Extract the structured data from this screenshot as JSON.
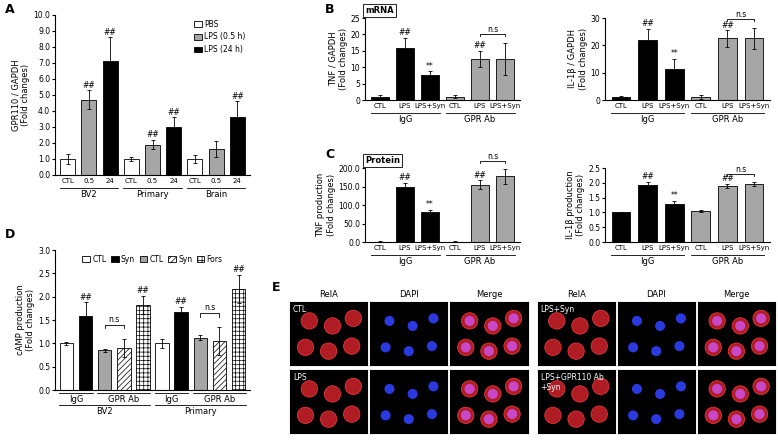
{
  "chart_data": [
    {
      "type": "bar",
      "panel": "A",
      "y_label": "GPR110 / GAPDH\n(Fold changes)",
      "categories": [
        "CTL",
        "0.5",
        "24",
        "CTL",
        "0.5",
        "24",
        "CTL",
        "0.5",
        "24"
      ],
      "values": [
        1.0,
        4.7,
        7.1,
        1.0,
        1.9,
        3.0,
        1.0,
        1.65,
        3.6
      ],
      "errors": [
        0.3,
        0.6,
        1.5,
        0.15,
        0.3,
        0.6,
        0.25,
        0.5,
        1.0
      ],
      "colors": [
        "#ffffff",
        "#a6a6a6",
        "#000000",
        "#ffffff",
        "#a6a6a6",
        "#000000",
        "#ffffff",
        "#a6a6a6",
        "#000000"
      ],
      "significance": [
        null,
        "##",
        "##",
        null,
        "##",
        "##",
        null,
        null,
        "##"
      ],
      "groups": [
        {
          "label": "BV2",
          "span": [
            0,
            2
          ]
        },
        {
          "label": "Primary",
          "span": [
            3,
            5
          ]
        },
        {
          "label": "Brain",
          "span": [
            6,
            8
          ]
        }
      ],
      "legend_entries": [
        {
          "name": "PBS",
          "color": "#ffffff"
        },
        {
          "name": "LPS (0.5 h)",
          "color": "#a6a6a6"
        },
        {
          "name": "LPS (24 h)",
          "color": "#000000"
        }
      ],
      "legend": "upper right",
      "ylim": [
        0,
        10
      ],
      "yticks": [
        {
          "value": 0,
          "label": "0.0"
        },
        {
          "value": 1,
          "label": "1.0"
        },
        {
          "value": 2,
          "label": "2.0"
        },
        {
          "value": 3,
          "label": "3.0"
        },
        {
          "value": 4,
          "label": "4.0"
        },
        {
          "value": 5,
          "label": "5.0"
        },
        {
          "value": 6,
          "label": "6.0"
        },
        {
          "value": 7,
          "label": "7.0"
        },
        {
          "value": 8,
          "label": "8.0"
        },
        {
          "value": 9,
          "label": "9.0"
        },
        {
          "value": 10,
          "label": "10.0"
        }
      ]
    },
    {
      "type": "bar",
      "panel": "B",
      "header": "mRNA",
      "y_label": "TNF / GAPDH\n(Fold changes)",
      "categories": [
        "CTL",
        "LPS",
        "LPS+Syn",
        "CTL",
        "LPS",
        "LPS+Syn"
      ],
      "values": [
        1.0,
        16.0,
        7.5,
        1.0,
        12.5,
        12.5
      ],
      "errors": [
        0.4,
        3.0,
        1.2,
        0.5,
        2.5,
        5.0
      ],
      "colors": [
        "#000000",
        "#000000",
        "#000000",
        "#a6a6a6",
        "#a6a6a6",
        "#a6a6a6"
      ],
      "significance": [
        null,
        "##",
        "**",
        null,
        "##",
        null
      ],
      "brackets": [
        {
          "between": [
            4,
            5
          ],
          "label": "n.s"
        }
      ],
      "groups": [
        {
          "label": "IgG",
          "span": [
            0,
            2
          ]
        },
        {
          "label": "GPR Ab",
          "span": [
            3,
            5
          ]
        }
      ],
      "ylim": [
        0,
        25
      ],
      "yticks": [
        0,
        5,
        10,
        15,
        20,
        25
      ]
    },
    {
      "type": "bar",
      "y_label": "IL-1β / GAPDH\n(Fold changes)",
      "categories": [
        "CTL",
        "LPS",
        "LPS+Syn",
        "CTL",
        "LPS",
        "LPS+Syn"
      ],
      "values": [
        1.0,
        22.0,
        11.5,
        1.0,
        22.5,
        22.5
      ],
      "errors": [
        0.5,
        4.0,
        3.5,
        0.8,
        3.0,
        4.0
      ],
      "colors": [
        "#000000",
        "#000000",
        "#000000",
        "#a6a6a6",
        "#a6a6a6",
        "#a6a6a6"
      ],
      "significance": [
        null,
        "##",
        "**",
        null,
        "##",
        null
      ],
      "brackets": [
        {
          "between": [
            4,
            5
          ],
          "label": "n.s"
        }
      ],
      "groups": [
        {
          "label": "IgG",
          "span": [
            0,
            2
          ]
        },
        {
          "label": "GPR Ab",
          "span": [
            3,
            5
          ]
        }
      ],
      "ylim": [
        0,
        30
      ],
      "yticks": [
        0,
        10,
        20,
        30
      ]
    },
    {
      "type": "bar",
      "panel": "C",
      "header": "Protein",
      "y_label": "TNF production\n(Fold changes)",
      "categories": [
        "CTL",
        "LPS",
        "LPS+Syn",
        "CTL",
        "LPS",
        "LPS+Syn"
      ],
      "values": [
        1.0,
        148,
        82,
        1.0,
        155,
        178
      ],
      "errors": [
        0.5,
        12,
        4,
        0.5,
        12,
        20
      ],
      "colors": [
        "#000000",
        "#000000",
        "#000000",
        "#a6a6a6",
        "#a6a6a6",
        "#a6a6a6"
      ],
      "significance": [
        null,
        "##",
        "**",
        null,
        "##",
        null
      ],
      "brackets": [
        {
          "between": [
            4,
            5
          ],
          "label": "n.s"
        }
      ],
      "groups": [
        {
          "label": "IgG",
          "span": [
            0,
            2
          ]
        },
        {
          "label": "GPR Ab",
          "span": [
            3,
            5
          ]
        }
      ],
      "ylim": [
        0,
        200
      ],
      "yticks": [
        {
          "value": 0,
          "label": "0.0"
        },
        {
          "value": 50,
          "label": "50.0"
        },
        {
          "value": 100,
          "label": "100.0"
        },
        {
          "value": 150,
          "label": "150.0"
        },
        {
          "value": 200,
          "label": "200.0"
        }
      ]
    },
    {
      "type": "bar",
      "y_label": "IL-1β production\n(Fold changes)",
      "categories": [
        "CTL",
        "LPS",
        "LPS+Syn",
        "CTL",
        "LPS",
        "LPS+Syn"
      ],
      "values": [
        1.0,
        1.93,
        1.28,
        1.05,
        1.9,
        1.97
      ],
      "errors": [
        0.02,
        0.1,
        0.12,
        0.04,
        0.06,
        0.07
      ],
      "colors": [
        "#000000",
        "#000000",
        "#000000",
        "#a6a6a6",
        "#a6a6a6",
        "#a6a6a6"
      ],
      "significance": [
        null,
        "##",
        "**",
        null,
        "##",
        null
      ],
      "brackets": [
        {
          "between": [
            4,
            5
          ],
          "label": "n.s"
        }
      ],
      "groups": [
        {
          "label": "IgG",
          "span": [
            0,
            2
          ]
        },
        {
          "label": "GPR Ab",
          "span": [
            3,
            5
          ]
        }
      ],
      "ylim": [
        0,
        2.5
      ],
      "yticks": [
        {
          "value": 0,
          "label": "0.0"
        },
        {
          "value": 0.5,
          "label": "0.5"
        },
        {
          "value": 1,
          "label": "1.0"
        },
        {
          "value": 1.5,
          "label": "1.5"
        },
        {
          "value": 2,
          "label": "2.0"
        },
        {
          "value": 2.5,
          "label": "2.5"
        }
      ]
    },
    {
      "type": "bar",
      "panel": "D",
      "y_label": "cAMP production\n(Fold changes)",
      "categories": [
        null,
        null,
        null,
        null,
        null,
        null,
        null,
        null,
        null,
        null
      ],
      "values": [
        1.0,
        1.58,
        0.85,
        0.9,
        1.82,
        1.0,
        1.68,
        1.12,
        1.05,
        2.17
      ],
      "errors": [
        0.03,
        0.3,
        0.03,
        0.2,
        0.2,
        0.1,
        0.1,
        0.05,
        0.3,
        0.3
      ],
      "colors": [
        "#ffffff",
        "#000000",
        "#a6a6a6",
        "#ffffff",
        "#ffffff",
        "#ffffff",
        "#000000",
        "#a6a6a6",
        "#ffffff",
        "#ffffff"
      ],
      "significance": [
        null,
        "##",
        null,
        null,
        "##",
        null,
        "##",
        null,
        null,
        "##"
      ],
      "brackets": [
        {
          "between": [
            2,
            3
          ],
          "label": "n.s"
        },
        {
          "between": [
            7,
            8
          ],
          "label": "n.s"
        }
      ],
      "subgroups": [
        {
          "label": "IgG",
          "span": [
            0,
            1
          ]
        },
        {
          "label": "GPR Ab",
          "span": [
            2,
            4
          ]
        },
        {
          "label": "IgG",
          "span": [
            5,
            6
          ]
        },
        {
          "label": "GPR Ab",
          "span": [
            7,
            9
          ]
        }
      ],
      "groups": [
        {
          "label": "BV2",
          "span": [
            0,
            4
          ]
        },
        {
          "label": "Primary",
          "span": [
            5,
            9
          ]
        }
      ],
      "legend_entries": [
        {
          "name": "CTL",
          "color": "#ffffff"
        },
        {
          "name": "Syn",
          "color": "#000000"
        },
        {
          "name": "CTL",
          "color": "#a6a6a6"
        },
        {
          "name": "Syn",
          "color": "#ffffff"
        },
        {
          "name": "Fors",
          "color": "#ffffff"
        }
      ],
      "legend": "upper center",
      "ylim": [
        0,
        3.0
      ],
      "yticks": [
        {
          "value": 0,
          "label": "0.0"
        },
        {
          "value": 0.5,
          "label": "0.5"
        },
        {
          "value": 1,
          "label": "1.0"
        },
        {
          "value": 1.5,
          "label": "1.5"
        },
        {
          "value": 2,
          "label": "2.0"
        },
        {
          "value": 2.5,
          "label": "2.5"
        },
        {
          "value": 3,
          "label": "3.0"
        }
      ]
    }
  ],
  "image_panel": {
    "panel": "E",
    "columns": [
      "RelA",
      "DAPI",
      "Merge",
      "RelA",
      "DAPI",
      "Merge"
    ],
    "conditions": [
      [
        "CTL",
        "LPS+Syn"
      ],
      [
        "LPS",
        "LPS+GPR110 Ab\n+Syn"
      ]
    ]
  }
}
